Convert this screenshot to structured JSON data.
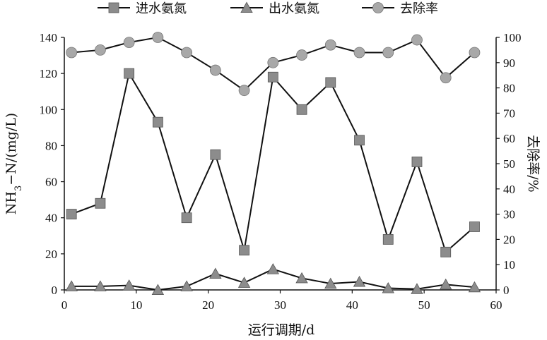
{
  "chart_data": {
    "type": "line",
    "xlabel": "运行调期/d",
    "ylabel_left_parts": [
      "NH",
      "3",
      "−N/(mg/L)"
    ],
    "ylabel_right": "去除率/%",
    "xlim": [
      0,
      60
    ],
    "ylim_left": [
      0,
      140
    ],
    "ylim_right": [
      0,
      100
    ],
    "x_ticks": [
      0,
      10,
      20,
      30,
      40,
      50,
      60
    ],
    "y_ticks_left": [
      0,
      20,
      40,
      60,
      80,
      100,
      120,
      140
    ],
    "y_ticks_right": [
      0,
      10,
      20,
      30,
      40,
      50,
      60,
      70,
      80,
      90,
      100
    ],
    "grid": false,
    "legend_position": "top",
    "x": [
      1,
      5,
      9,
      13,
      17,
      21,
      25,
      29,
      33,
      37,
      41,
      45,
      49,
      53,
      57
    ],
    "series": [
      {
        "name": "进水氨氮",
        "axis": "left",
        "marker": "square",
        "color": "#8c8c8c",
        "values": [
          42,
          48,
          120,
          93,
          40,
          75,
          22,
          118,
          100,
          115,
          83,
          28,
          71,
          21,
          35
        ]
      },
      {
        "name": "出水氨氮",
        "axis": "left",
        "marker": "triangle",
        "color": "#8c8c8c",
        "values": [
          2,
          2,
          2.5,
          0,
          2,
          9,
          4,
          11.5,
          6.5,
          3.5,
          4.5,
          1,
          0.5,
          3,
          1.5
        ]
      },
      {
        "name": "去除率",
        "axis": "right",
        "marker": "circle",
        "color": "#a8a8a8",
        "values": [
          94,
          95,
          98,
          100,
          94,
          87,
          79,
          90,
          93,
          97,
          94,
          94,
          99,
          84,
          94
        ]
      }
    ]
  }
}
